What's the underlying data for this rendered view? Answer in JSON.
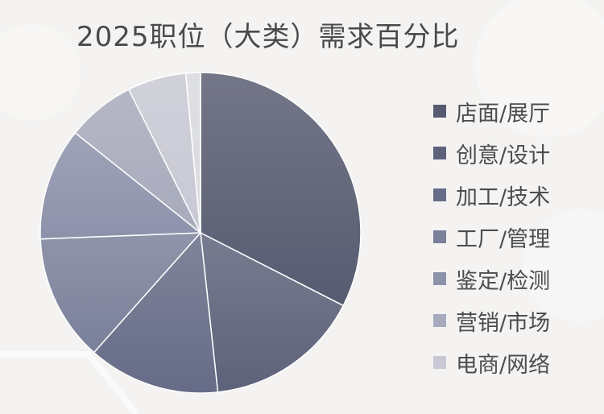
{
  "chart_data": {
    "type": "pie",
    "title": "2025职位（大类）需求百分比",
    "categories": [
      "店面/展厅",
      "创意/设计",
      "加工/技术",
      "工厂/管理",
      "鉴定/检测",
      "营销/市场",
      "电商/网络"
    ],
    "values": [
      33.0,
      16.0,
      13.5,
      13.0,
      11.5,
      7.0,
      6.0
    ],
    "values_note": "",
    "colors": [
      "#575b70",
      "#5d627a",
      "#666c87",
      "#7a809a",
      "#8d92ab",
      "#a7aabc",
      "#c8c9d4"
    ],
    "legend_position": "right"
  },
  "extra_slice": {
    "value": 1.5,
    "color": "#dadbe0"
  }
}
